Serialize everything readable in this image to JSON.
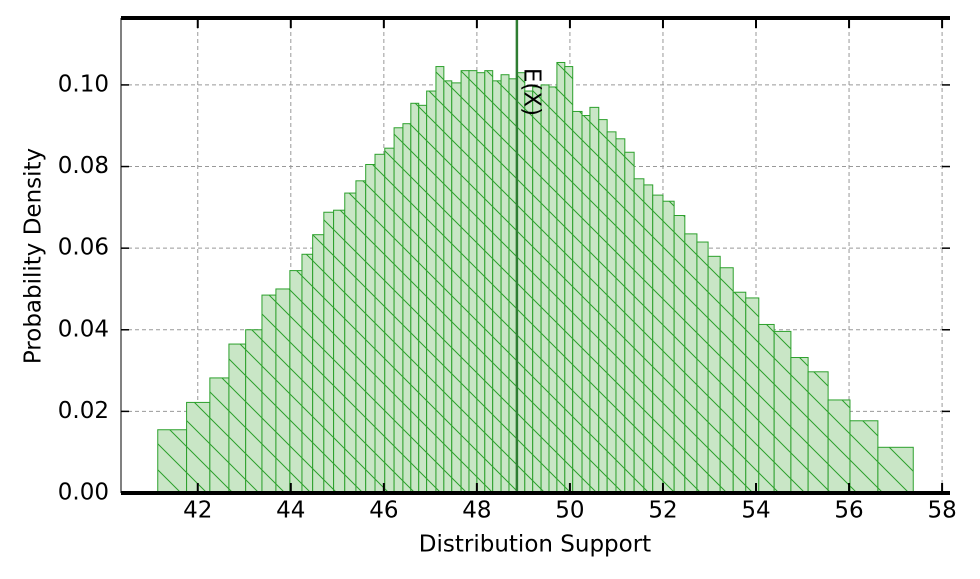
{
  "chart_data": {
    "type": "histogram",
    "x_label": "Distribution Support",
    "y_label": "Probability Density",
    "bins": [
      41.14,
      41.76,
      42.26,
      42.67,
      43.03,
      43.38,
      43.68,
      43.98,
      44.24,
      44.47,
      44.71,
      44.92,
      45.16,
      45.4,
      45.61,
      45.81,
      46.02,
      46.22,
      46.41,
      46.58,
      46.75,
      46.92,
      47.12,
      47.29,
      47.46,
      47.66,
      47.83,
      48.0,
      48.17,
      48.34,
      48.52,
      48.69,
      48.86,
      49.03,
      49.2,
      49.38,
      49.55,
      49.72,
      49.89,
      50.06,
      50.26,
      50.43,
      50.62,
      50.8,
      50.99,
      51.18,
      51.38,
      51.59,
      51.78,
      52.0,
      52.24,
      52.47,
      52.73,
      52.97,
      53.23,
      53.51,
      53.78,
      54.06,
      54.39,
      54.75,
      55.12,
      55.55,
      56.02,
      56.62,
      57.38
    ],
    "values": [
      0.0155,
      0.0222,
      0.0282,
      0.0365,
      0.04,
      0.0485,
      0.05,
      0.0545,
      0.0585,
      0.0633,
      0.0688,
      0.0693,
      0.0735,
      0.0765,
      0.0805,
      0.083,
      0.0845,
      0.0895,
      0.0905,
      0.0955,
      0.095,
      0.0985,
      0.1045,
      0.101,
      0.1005,
      0.1035,
      0.1035,
      0.103,
      0.1035,
      0.101,
      0.1025,
      0.1015,
      0.103,
      0.0985,
      0.0995,
      0.1,
      0.0995,
      0.1055,
      0.1045,
      0.0935,
      0.0925,
      0.0945,
      0.0915,
      0.0885,
      0.0868,
      0.0835,
      0.077,
      0.0755,
      0.073,
      0.0715,
      0.068,
      0.0635,
      0.0615,
      0.058,
      0.0552,
      0.0492,
      0.0478,
      0.0413,
      0.0396,
      0.0332,
      0.0297,
      0.0228,
      0.0177,
      0.0112
    ],
    "color": "#2ca02c",
    "fill": "#c9e6c6",
    "mean_line": {
      "value": 48.86,
      "label": "E(X)",
      "color": "#2e7d32"
    },
    "xlim": [
      40.35,
      58.17
    ],
    "ylim": [
      0,
      0.1164
    ],
    "xticks": [
      42,
      44,
      46,
      48,
      50,
      52,
      54,
      56,
      58
    ],
    "yticks": [
      {
        "value": 0,
        "label": "0.00"
      },
      {
        "value": 0.02,
        "label": "0.02"
      },
      {
        "value": 0.04,
        "label": "0.04"
      },
      {
        "value": 0.06,
        "label": "0.06"
      },
      {
        "value": 0.08,
        "label": "0.08"
      },
      {
        "value": 0.1,
        "label": "0.10"
      }
    ],
    "grid": true
  }
}
